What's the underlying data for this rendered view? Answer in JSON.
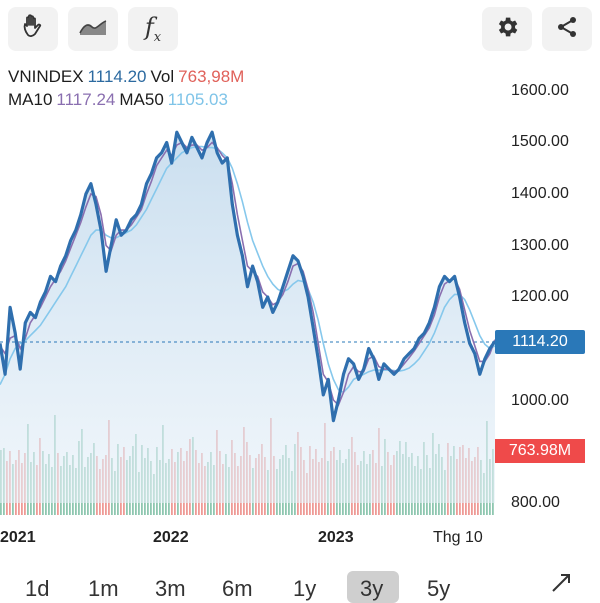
{
  "toolbar": {
    "draw_icon": "hand-draw-icon",
    "chart_type_icon": "area-chart-icon",
    "indicator_icon": "fx-icon",
    "settings_icon": "gear-icon",
    "share_icon": "share-icon",
    "indicator_label": "f"
  },
  "legend": {
    "symbol": "VNINDEX",
    "index_value": "1114.20",
    "vol_label": "Vol",
    "vol_value": "763,98M",
    "ma10_label": "MA10",
    "ma10_value": "1117.24",
    "ma50_label": "MA50",
    "ma50_value": "1105.03"
  },
  "colors": {
    "price_line": "#2f6fae",
    "ma10": "#8a6fb0",
    "ma50": "#86c8ec",
    "price_tag": "#2a78b8",
    "vol_tag": "#ef4a4a",
    "vol_up": "#8fc7b0",
    "vol_down": "#ee9a96"
  },
  "price_tag": "1114.20",
  "vol_tag": "763.98M",
  "y_axis_ticks": [
    "1600.00",
    "1500.00",
    "1400.00",
    "1300.00",
    "1200.00",
    "1000.00",
    "800.00"
  ],
  "x_axis_ticks": [
    "2021",
    "2022",
    "2023",
    "Thg 10"
  ],
  "range_tabs": [
    "1d",
    "1m",
    "3m",
    "6m",
    "1y",
    "3y",
    "5y"
  ],
  "active_range": "3y",
  "chart_data": {
    "type": "line",
    "title": "VNINDEX",
    "ylim": [
      800,
      1620
    ],
    "series": [
      {
        "name": "VNINDEX",
        "values": [
          1110,
          1050,
          1180,
          1130,
          1060,
          1150,
          1170,
          1160,
          1190,
          1210,
          1240,
          1230,
          1260,
          1280,
          1310,
          1330,
          1360,
          1400,
          1420,
          1380,
          1330,
          1250,
          1300,
          1350,
          1320,
          1330,
          1350,
          1360,
          1380,
          1420,
          1440,
          1470,
          1480,
          1500,
          1460,
          1520,
          1500,
          1480,
          1510,
          1490,
          1470,
          1500,
          1520,
          1480,
          1460,
          1470,
          1380,
          1320,
          1280,
          1220,
          1260,
          1230,
          1180,
          1200,
          1170,
          1190,
          1220,
          1250,
          1280,
          1270,
          1240,
          1200,
          1140,
          1080,
          1010,
          1040,
          960,
          1000,
          1050,
          1080,
          1070,
          1040,
          1060,
          1100,
          1080,
          1040,
          1070,
          1060,
          1050,
          1060,
          1080,
          1090,
          1100,
          1120,
          1130,
          1150,
          1180,
          1220,
          1240,
          1230,
          1240,
          1200,
          1150,
          1110,
          1090,
          1050,
          1080,
          1100,
          1114
        ]
      },
      {
        "name": "MA10",
        "values": [
          1105,
          1090,
          1120,
          1125,
          1100,
          1120,
          1150,
          1165,
          1180,
          1200,
          1220,
          1235,
          1250,
          1270,
          1295,
          1320,
          1345,
          1375,
          1400,
          1395,
          1360,
          1300,
          1290,
          1320,
          1330,
          1330,
          1340,
          1355,
          1370,
          1400,
          1425,
          1455,
          1470,
          1485,
          1475,
          1495,
          1500,
          1490,
          1495,
          1495,
          1485,
          1490,
          1500,
          1490,
          1475,
          1465,
          1420,
          1360,
          1310,
          1260,
          1250,
          1240,
          1210,
          1200,
          1185,
          1190,
          1205,
          1230,
          1260,
          1265,
          1250,
          1215,
          1170,
          1110,
          1050,
          1035,
          1000,
          990,
          1015,
          1050,
          1065,
          1055,
          1055,
          1080,
          1085,
          1065,
          1060,
          1060,
          1055,
          1058,
          1070,
          1082,
          1095,
          1110,
          1125,
          1140,
          1165,
          1200,
          1225,
          1232,
          1236,
          1215,
          1175,
          1135,
          1105,
          1075,
          1075,
          1090,
          1117
        ]
      },
      {
        "name": "MA50",
        "values": [
          1030,
          1050,
          1080,
          1100,
          1110,
          1115,
          1125,
          1135,
          1145,
          1160,
          1175,
          1190,
          1205,
          1220,
          1240,
          1260,
          1280,
          1300,
          1320,
          1330,
          1330,
          1320,
          1315,
          1315,
          1320,
          1325,
          1330,
          1340,
          1355,
          1370,
          1390,
          1410,
          1430,
          1450,
          1460,
          1470,
          1480,
          1485,
          1490,
          1492,
          1492,
          1490,
          1490,
          1488,
          1480,
          1470,
          1450,
          1420,
          1385,
          1345,
          1310,
          1285,
          1260,
          1240,
          1225,
          1215,
          1210,
          1215,
          1225,
          1232,
          1230,
          1215,
          1190,
          1155,
          1110,
          1070,
          1040,
          1020,
          1015,
          1025,
          1040,
          1045,
          1050,
          1055,
          1058,
          1058,
          1058,
          1058,
          1057,
          1056,
          1058,
          1062,
          1070,
          1080,
          1095,
          1110,
          1130,
          1155,
          1180,
          1195,
          1205,
          1205,
          1195,
          1175,
          1150,
          1125,
          1108,
          1100,
          1105
        ]
      }
    ],
    "volume_series": [
      {
        "name": "Vol",
        "last_value": "763.98M"
      }
    ]
  }
}
